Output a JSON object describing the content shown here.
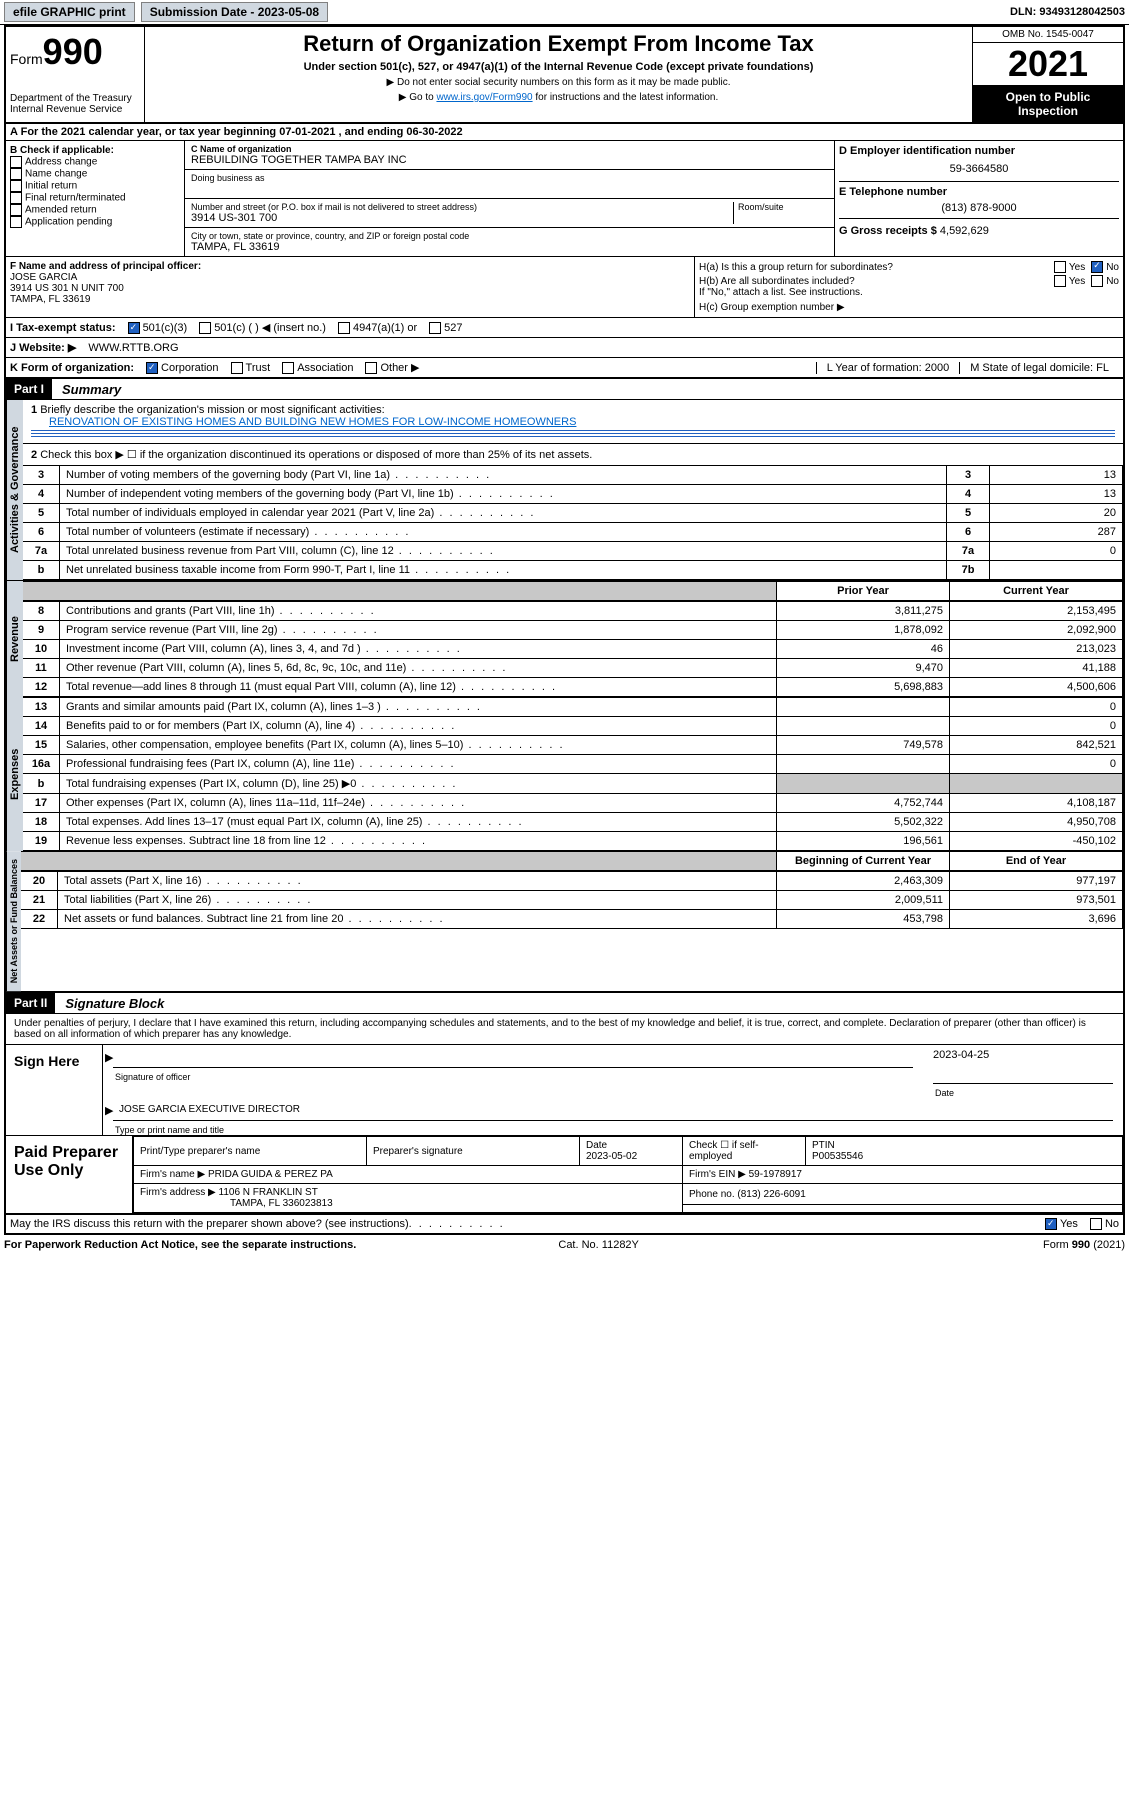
{
  "topbar": {
    "efile": "efile GRAPHIC print",
    "subdate_lbl": "Submission Date - 2023-05-08",
    "dln": "DLN: 93493128042503"
  },
  "hdr": {
    "form_word": "Form",
    "form_no": "990",
    "dept": "Department of the Treasury",
    "irs": "Internal Revenue Service",
    "title": "Return of Organization Exempt From Income Tax",
    "sub": "Under section 501(c), 527, or 4947(a)(1) of the Internal Revenue Code (except private foundations)",
    "note1": "▶ Do not enter social security numbers on this form as it may be made public.",
    "note2_pre": "▶ Go to ",
    "note2_link": "www.irs.gov/Form990",
    "note2_post": " for instructions and the latest information.",
    "omb": "OMB No. 1545-0047",
    "year": "2021",
    "open": "Open to Public Inspection"
  },
  "A": {
    "text": "For the 2021 calendar year, or tax year beginning 07-01-2021  , and ending 06-30-2022"
  },
  "B": {
    "hdr": "B Check if applicable:",
    "opts": [
      "Address change",
      "Name change",
      "Initial return",
      "Final return/terminated",
      "Amended return",
      "Application pending"
    ]
  },
  "C": {
    "name_lbl": "C Name of organization",
    "name": "REBUILDING TOGETHER TAMPA BAY INC",
    "dba_lbl": "Doing business as",
    "addr_lbl": "Number and street (or P.O. box if mail is not delivered to street address)",
    "room_lbl": "Room/suite",
    "addr": "3914 US-301 700",
    "city_lbl": "City or town, state or province, country, and ZIP or foreign postal code",
    "city": "TAMPA, FL  33619"
  },
  "D": {
    "ein_lbl": "D Employer identification number",
    "ein": "59-3664580",
    "tel_lbl": "E Telephone number",
    "tel": "(813) 878-9000",
    "gross_lbl": "G Gross receipts $",
    "gross": "4,592,629"
  },
  "F": {
    "lbl": "F Name and address of principal officer:",
    "name": "JOSE GARCIA",
    "addr1": "3914 US 301 N UNIT 700",
    "addr2": "TAMPA, FL  33619"
  },
  "H": {
    "a": "H(a)  Is this a group return for subordinates?",
    "b": "H(b)  Are all subordinates included?",
    "b_note": "If \"No,\" attach a list. See instructions.",
    "c": "H(c)  Group exemption number ▶",
    "yes": "Yes",
    "no": "No"
  },
  "I": {
    "lbl": "I   Tax-exempt status:",
    "opts": [
      "501(c)(3)",
      "501(c) (  ) ◀ (insert no.)",
      "4947(a)(1) or",
      "527"
    ]
  },
  "J": {
    "lbl": "J   Website: ▶",
    "val": "WWW.RTTB.ORG"
  },
  "K": {
    "lbl": "K Form of organization:",
    "opts": [
      "Corporation",
      "Trust",
      "Association",
      "Other ▶"
    ]
  },
  "L": {
    "lbl": "L Year of formation: 2000"
  },
  "M": {
    "lbl": "M State of legal domicile: FL"
  },
  "partI": {
    "tag": "Part I",
    "title": "Summary",
    "l1": "Briefly describe the organization's mission or most significant activities:",
    "mission": "RENOVATION OF EXISTING HOMES AND BUILDING NEW HOMES FOR LOW-INCOME HOMEOWNERS",
    "l2": "Check this box ▶ ☐  if the organization discontinued its operations or disposed of more than 25% of its net assets.",
    "rows_gov": [
      {
        "n": "3",
        "d": "Number of voting members of the governing body (Part VI, line 1a)",
        "box": "3",
        "v": "13"
      },
      {
        "n": "4",
        "d": "Number of independent voting members of the governing body (Part VI, line 1b)",
        "box": "4",
        "v": "13"
      },
      {
        "n": "5",
        "d": "Total number of individuals employed in calendar year 2021 (Part V, line 2a)",
        "box": "5",
        "v": "20"
      },
      {
        "n": "6",
        "d": "Total number of volunteers (estimate if necessary)",
        "box": "6",
        "v": "287"
      },
      {
        "n": "7a",
        "d": "Total unrelated business revenue from Part VIII, column (C), line 12",
        "box": "7a",
        "v": "0"
      },
      {
        "n": "b",
        "d": "Net unrelated business taxable income from Form 990-T, Part I, line 11",
        "box": "7b",
        "v": ""
      }
    ],
    "col_prior": "Prior Year",
    "col_curr": "Current Year",
    "rows_rev": [
      {
        "n": "8",
        "d": "Contributions and grants (Part VIII, line 1h)",
        "p": "3,811,275",
        "c": "2,153,495"
      },
      {
        "n": "9",
        "d": "Program service revenue (Part VIII, line 2g)",
        "p": "1,878,092",
        "c": "2,092,900"
      },
      {
        "n": "10",
        "d": "Investment income (Part VIII, column (A), lines 3, 4, and 7d )",
        "p": "46",
        "c": "213,023"
      },
      {
        "n": "11",
        "d": "Other revenue (Part VIII, column (A), lines 5, 6d, 8c, 9c, 10c, and 11e)",
        "p": "9,470",
        "c": "41,188"
      },
      {
        "n": "12",
        "d": "Total revenue—add lines 8 through 11 (must equal Part VIII, column (A), line 12)",
        "p": "5,698,883",
        "c": "4,500,606"
      }
    ],
    "rows_exp": [
      {
        "n": "13",
        "d": "Grants and similar amounts paid (Part IX, column (A), lines 1–3 )",
        "p": "",
        "c": "0"
      },
      {
        "n": "14",
        "d": "Benefits paid to or for members (Part IX, column (A), line 4)",
        "p": "",
        "c": "0"
      },
      {
        "n": "15",
        "d": "Salaries, other compensation, employee benefits (Part IX, column (A), lines 5–10)",
        "p": "749,578",
        "c": "842,521"
      },
      {
        "n": "16a",
        "d": "Professional fundraising fees (Part IX, column (A), line 11e)",
        "p": "",
        "c": "0"
      },
      {
        "n": "b",
        "d": "Total fundraising expenses (Part IX, column (D), line 25) ▶0",
        "p": "grey",
        "c": "grey"
      },
      {
        "n": "17",
        "d": "Other expenses (Part IX, column (A), lines 11a–11d, 11f–24e)",
        "p": "4,752,744",
        "c": "4,108,187"
      },
      {
        "n": "18",
        "d": "Total expenses. Add lines 13–17 (must equal Part IX, column (A), line 25)",
        "p": "5,502,322",
        "c": "4,950,708"
      },
      {
        "n": "19",
        "d": "Revenue less expenses. Subtract line 18 from line 12",
        "p": "196,561",
        "c": "-450,102"
      }
    ],
    "col_begin": "Beginning of Current Year",
    "col_end": "End of Year",
    "rows_na": [
      {
        "n": "20",
        "d": "Total assets (Part X, line 16)",
        "p": "2,463,309",
        "c": "977,197"
      },
      {
        "n": "21",
        "d": "Total liabilities (Part X, line 26)",
        "p": "2,009,511",
        "c": "973,501"
      },
      {
        "n": "22",
        "d": "Net assets or fund balances. Subtract line 21 from line 20",
        "p": "453,798",
        "c": "3,696"
      }
    ],
    "vtabs": [
      "Activities & Governance",
      "Revenue",
      "Expenses",
      "Net Assets or Fund Balances"
    ]
  },
  "partII": {
    "tag": "Part II",
    "title": "Signature Block",
    "decl": "Under penalties of perjury, I declare that I have examined this return, including accompanying schedules and statements, and to the best of my knowledge and belief, it is true, correct, and complete. Declaration of preparer (other than officer) is based on all information of which preparer has any knowledge."
  },
  "sign": {
    "here": "Sign Here",
    "sig_lbl": "Signature of officer",
    "date_lbl": "Date",
    "date": "2023-04-25",
    "name": "JOSE GARCIA  EXECUTIVE DIRECTOR",
    "name_lbl": "Type or print name and title"
  },
  "prep": {
    "hdr": "Paid Preparer Use Only",
    "cols": [
      "Print/Type preparer's name",
      "Preparer's signature",
      "Date",
      "",
      "PTIN"
    ],
    "date": "2023-05-02",
    "check_lbl": "Check ☐ if self-employed",
    "ptin": "P00535546",
    "firm_lbl": "Firm's name    ▶",
    "firm": "PRIDA GUIDA & PEREZ PA",
    "ein_lbl": "Firm's EIN ▶",
    "ein": "59-1978917",
    "addr_lbl": "Firm's address ▶",
    "addr1": "1106 N FRANKLIN ST",
    "addr2": "TAMPA, FL  336023813",
    "phone_lbl": "Phone no.",
    "phone": "(813) 226-6091"
  },
  "discuss": {
    "q": "May the IRS discuss this return with the preparer shown above? (see instructions)",
    "yes": "Yes",
    "no": "No"
  },
  "footer": {
    "l": "For Paperwork Reduction Act Notice, see the separate instructions.",
    "m": "Cat. No. 11282Y",
    "r": "Form 990 (2021)"
  }
}
